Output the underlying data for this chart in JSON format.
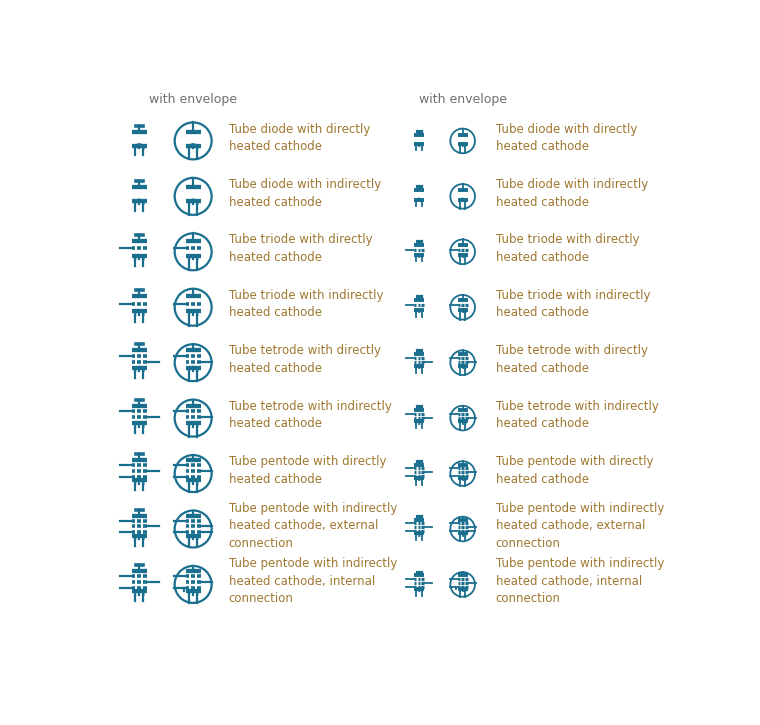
{
  "symbol_color": "#1a6e8e",
  "text_color": "#a07830",
  "title_color": "#707070",
  "bg_color": "#ffffff",
  "header_text": "with envelope",
  "rows": [
    {
      "label": "Tube diode with directly\nheated cathode",
      "type": "diode_direct"
    },
    {
      "label": "Tube diode with indirectly\nheated cathode",
      "type": "diode_indirect"
    },
    {
      "label": "Tube triode with directly\nheated cathode",
      "type": "triode_direct"
    },
    {
      "label": "Tube triode with indirectly\nheated cathode",
      "type": "triode_indirect"
    },
    {
      "label": "Tube tetrode with directly\nheated cathode",
      "type": "tetrode_direct"
    },
    {
      "label": "Tube tetrode with indirectly\nheated cathode",
      "type": "tetrode_indirect"
    },
    {
      "label": "Tube pentode with directly\nheated cathode",
      "type": "pentode_direct"
    },
    {
      "label": "Tube pentode with indirectly\nheated cathode, external\nconnection",
      "type": "pentode_indirect_ext"
    },
    {
      "label": "Tube pentode with indirectly\nheated cathode, internal\nconnection",
      "type": "pentode_indirect_int"
    }
  ]
}
